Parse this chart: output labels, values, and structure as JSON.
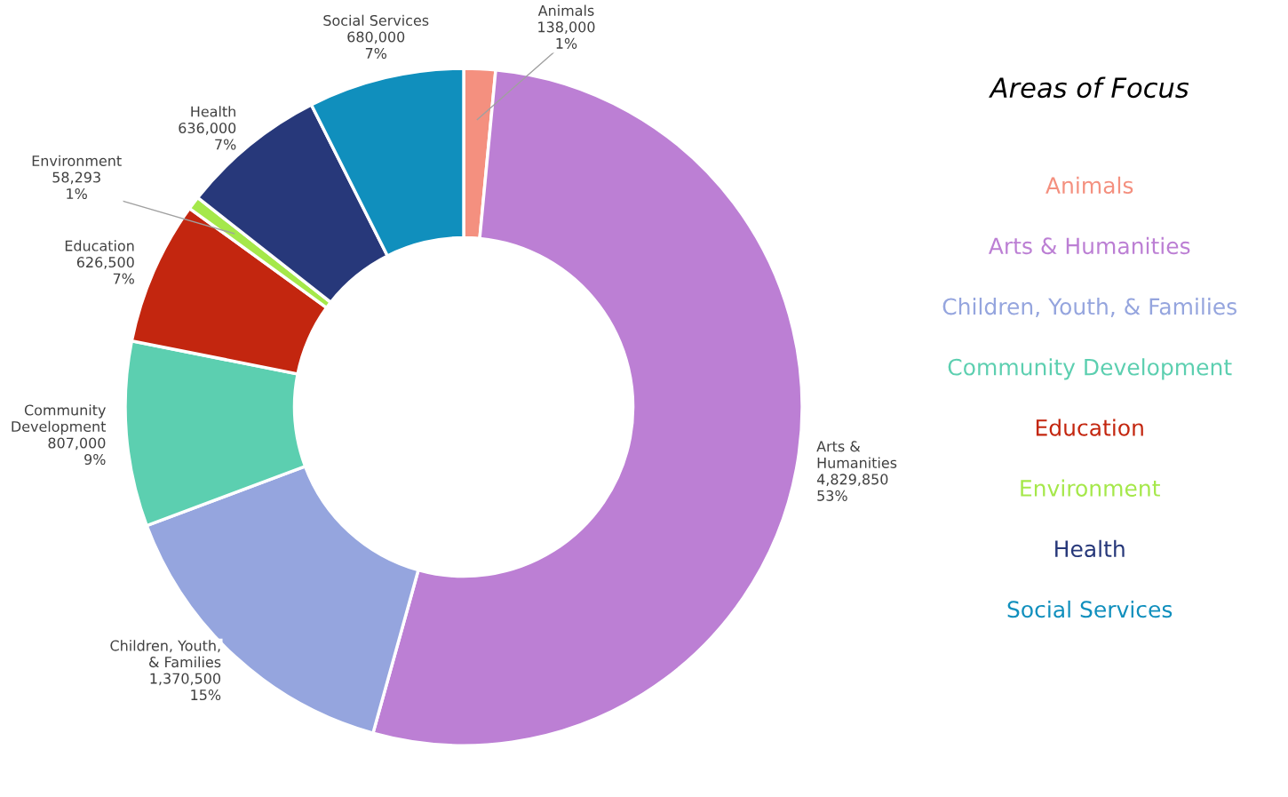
{
  "chart_data": {
    "type": "donut",
    "legend_title": "Areas of Focus",
    "categories": [
      "Animals",
      "Arts & Humanities",
      "Children, Youth, & Families",
      "Community Development",
      "Education",
      "Environment",
      "Health",
      "Social Services"
    ],
    "values": [
      138000,
      4829850,
      1370500,
      807000,
      626500,
      58293,
      636000,
      680000
    ],
    "value_labels": [
      "138,000\n1%",
      "4,829,850\n53%",
      "1,370,500\n15%",
      "807,000\n9%",
      "626,500\n7%",
      "58,293\n1%",
      "636,000\n7%",
      "680,000\n7%"
    ],
    "colors": [
      "#f4907f",
      "#bc7fd4",
      "#95a5de",
      "#5ccfb0",
      "#c3260f",
      "#a5e84a",
      "#27387a",
      "#108fbd"
    ]
  }
}
